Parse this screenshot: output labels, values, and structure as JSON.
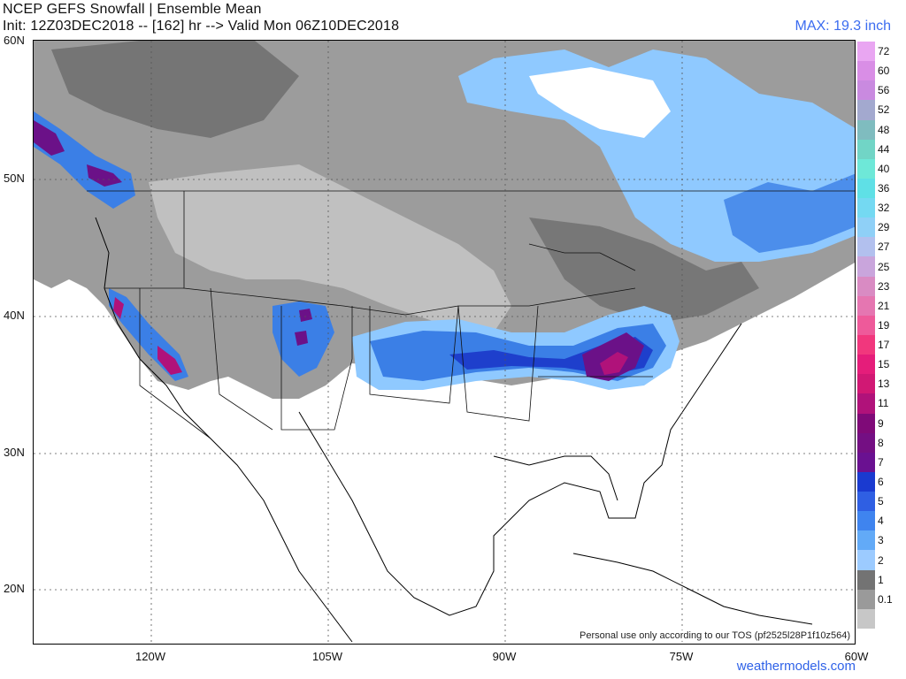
{
  "header": {
    "title_line1": "NCEP GEFS Snowfall | Ensemble Mean",
    "title_line2": "Init: 12Z03DEC2018 -- [162] hr --> Valid Mon 06Z10DEC2018",
    "max_label": "MAX: 19.3 inch"
  },
  "axes": {
    "lat_labels": [
      "60N",
      "50N",
      "40N",
      "30N",
      "20N"
    ],
    "lon_labels": [
      "120W",
      "105W",
      "90W",
      "75W",
      "60W"
    ]
  },
  "footer": {
    "tos": "Personal use only according to our TOS (pf2525l28P1f10z564)",
    "brand": "weathermodels.com"
  },
  "colorbar": {
    "labels": [
      "72",
      "60",
      "56",
      "52",
      "48",
      "44",
      "40",
      "36",
      "32",
      "29",
      "27",
      "25",
      "23",
      "21",
      "19",
      "17",
      "15",
      "13",
      "11",
      "9",
      "8",
      "7",
      "6",
      "5",
      "4",
      "3",
      "2",
      "1",
      "0.1"
    ],
    "colors": [
      "#e9a6f2",
      "#d98ee6",
      "#c98ae0",
      "#a3a9cf",
      "#7fbcbf",
      "#71d5c6",
      "#6ee8d8",
      "#5fe0e6",
      "#74d9f2",
      "#8fd0f7",
      "#b2c0ee",
      "#c9a5dc",
      "#d98bc3",
      "#e576b1",
      "#ee5a9a",
      "#f1377d",
      "#e51d7a",
      "#d11874",
      "#b0127a",
      "#7f0a78",
      "#740f83",
      "#6a1191",
      "#1a3ad0",
      "#2f5fe3",
      "#3f84ef",
      "#62aaf7",
      "#9ccbff",
      "#737373",
      "#9a9a9a",
      "#c7c7c7"
    ]
  },
  "legend_colors": {
    "snow_light_gray": "#c8c8c8",
    "snow_mid_gray": "#9c9c9c",
    "snow_dark_gray": "#6e6e6e",
    "snow_light_blue": "#8fc9ff",
    "snow_blue": "#3b7fe6",
    "snow_dark_blue": "#1e3fcc",
    "snow_purple": "#6b1188",
    "snow_magenta": "#b0127a"
  }
}
